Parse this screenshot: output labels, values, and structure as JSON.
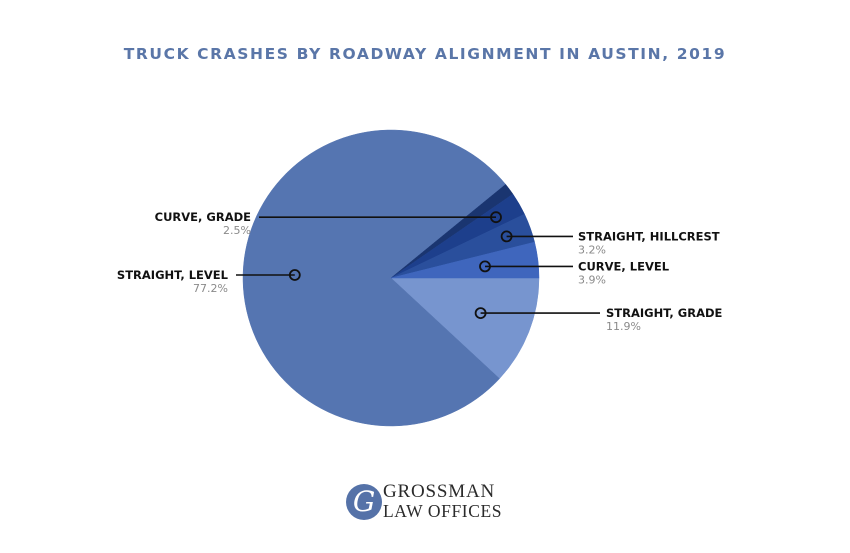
{
  "title": "TRUCK CRASHES BY ROADWAY ALIGNMENT IN AUSTIN, 2019",
  "chart_data": {
    "type": "pie",
    "title": "TRUCK CRASHES BY ROADWAY ALIGNMENT IN AUSTIN, 2019",
    "slices": [
      {
        "label": "STRAIGHT, GRADE",
        "value": 11.9,
        "display": "11.9%",
        "color": "#7795cf"
      },
      {
        "label": "STRAIGHT, LEVEL",
        "value": 77.2,
        "display": "77.2%",
        "color": "#5575b1"
      },
      {
        "label": "",
        "value": 1.3,
        "display": "",
        "color": "#1a3570"
      },
      {
        "label": "CURVE, GRADE",
        "value": 2.5,
        "display": "2.5%",
        "color": "#1d3f8c"
      },
      {
        "label": "STRAIGHT, HILLCREST",
        "value": 3.2,
        "display": "3.2%",
        "color": "#2a4f9c"
      },
      {
        "label": "CURVE, LEVEL",
        "value": 3.9,
        "display": "3.9%",
        "color": "#3f66bd"
      }
    ],
    "legend": "none"
  },
  "logo": {
    "mark": "G",
    "line1": "GROSSMAN",
    "line2": "LAW OFFICES"
  }
}
